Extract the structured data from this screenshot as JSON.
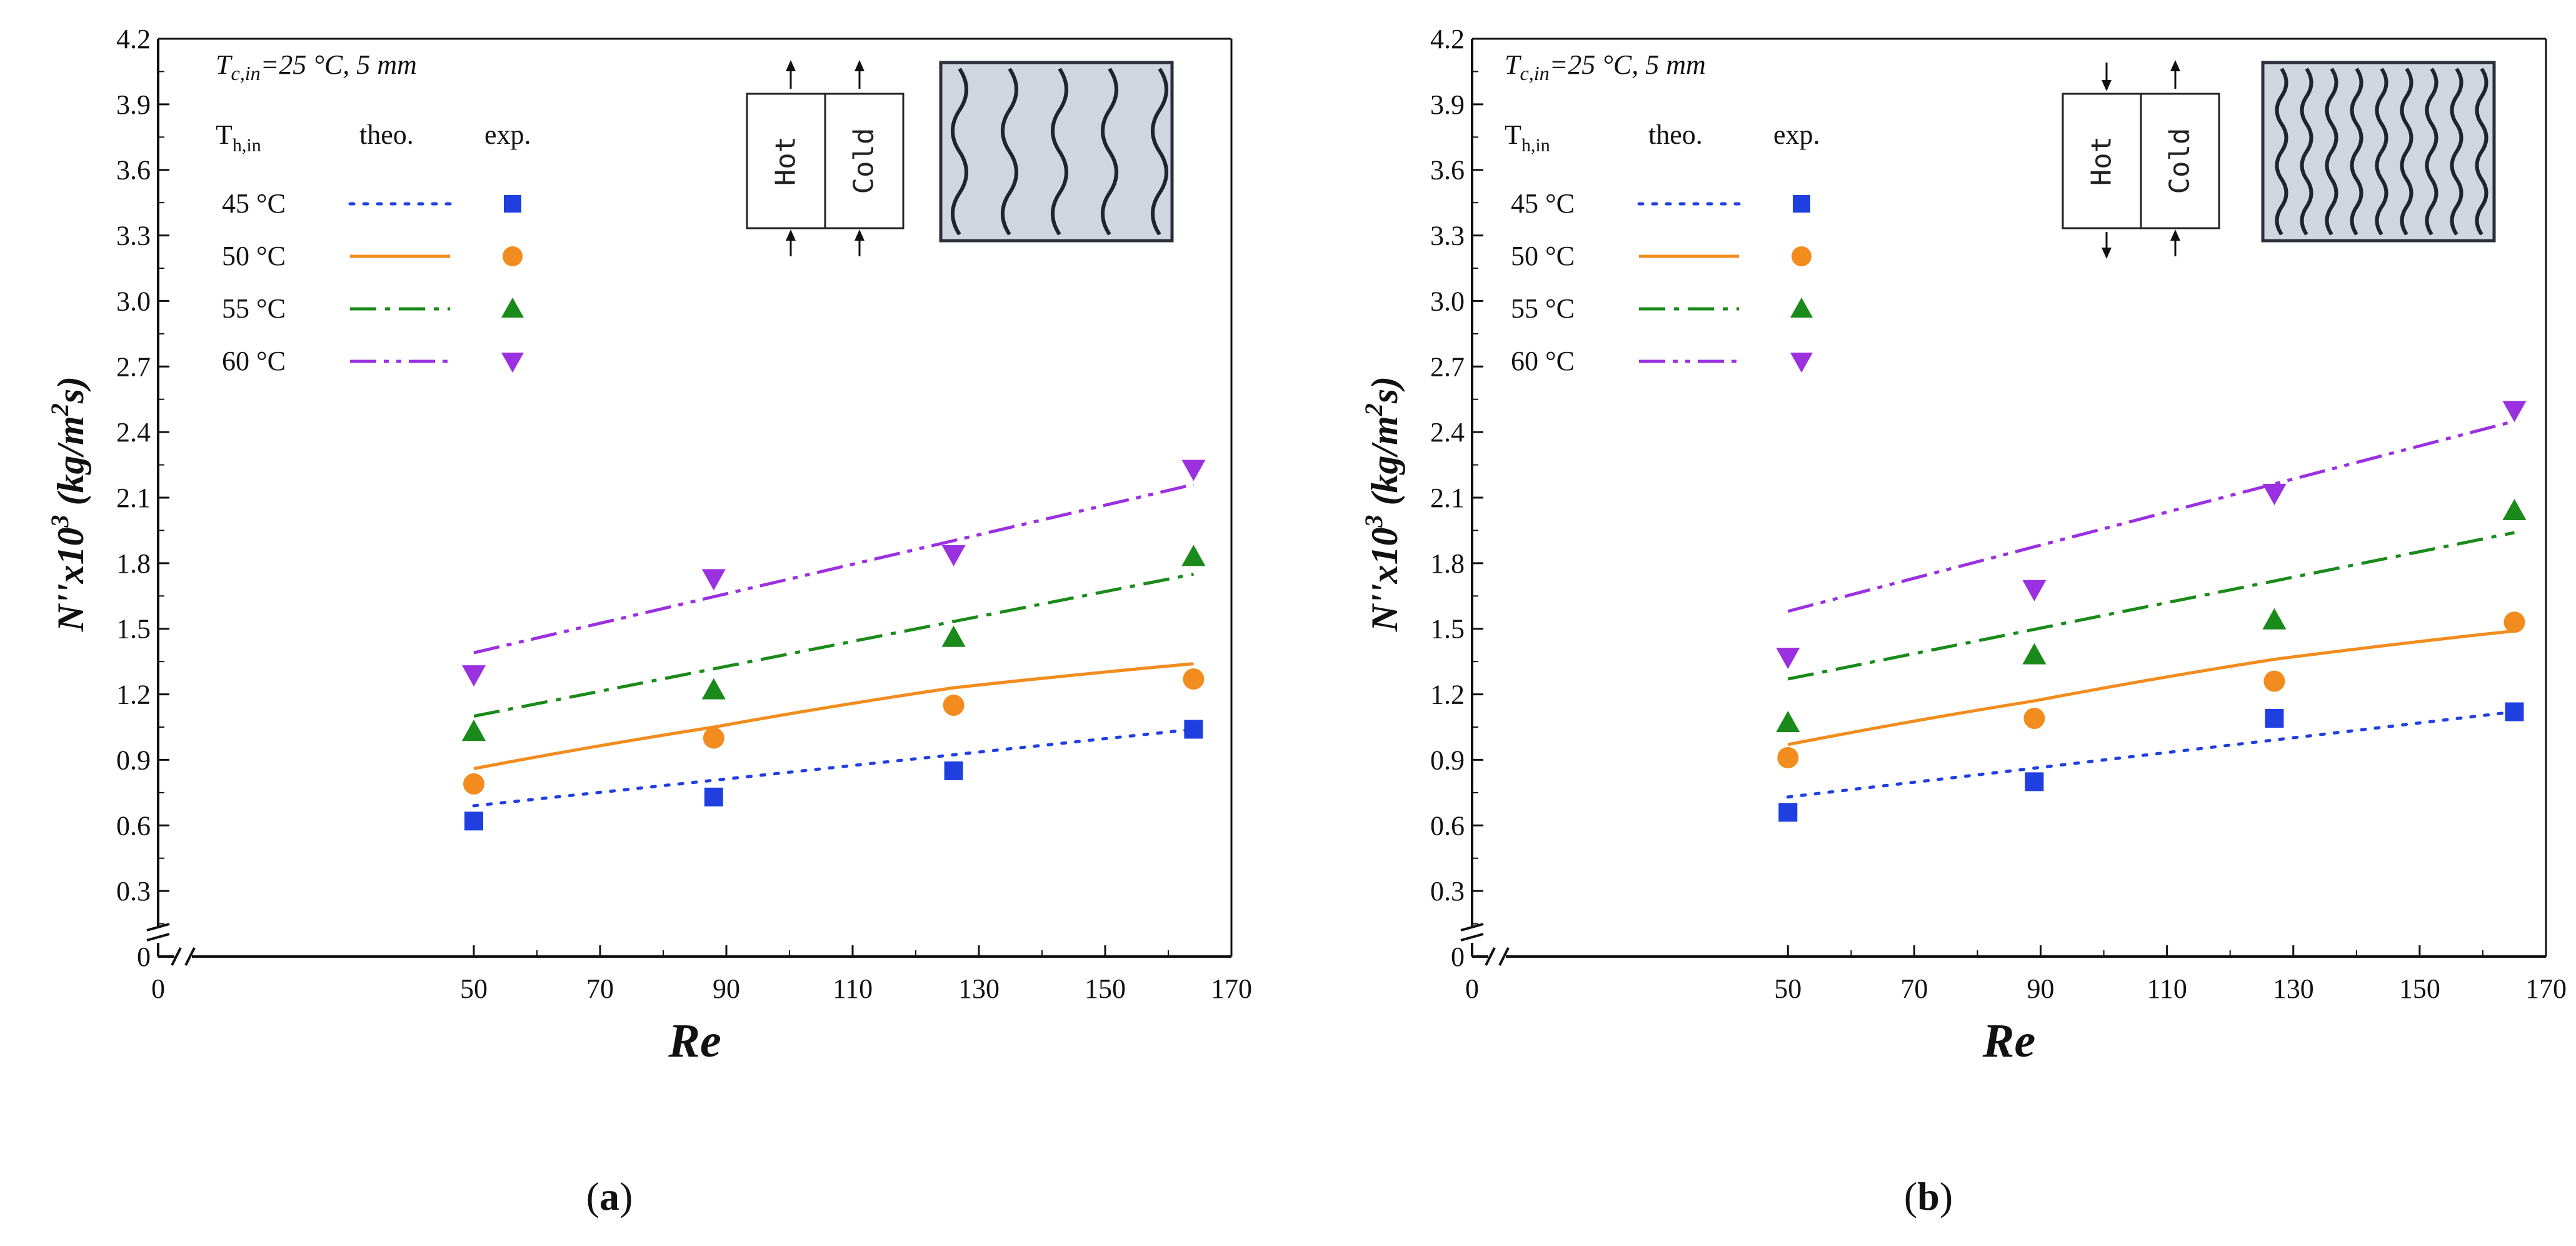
{
  "chart_data": [
    {
      "type": "scatter",
      "panel_label": "a",
      "condition": "T_c,in=25 °C, 5 mm",
      "condition_parts": {
        "T": "T",
        "sub": "c,in",
        "rest": "=25 °C, 5 mm"
      },
      "xlabel": "Re",
      "ylabel": {
        "main": "N''x10",
        "sup1": "3",
        "unit_open": " (kg/m",
        "sup2": "2",
        "unit_close": "s)"
      },
      "xlim": [
        0,
        170
      ],
      "ylim": [
        0,
        4.2
      ],
      "xticks": [
        0,
        50,
        70,
        90,
        110,
        130,
        150,
        170
      ],
      "yticks": [
        0,
        0.3,
        0.6,
        0.9,
        1.2,
        1.5,
        1.8,
        2.1,
        2.4,
        2.7,
        3.0,
        3.3,
        3.6,
        3.9,
        4.2
      ],
      "legend_headers": {
        "T": "T",
        "sub": "h,in",
        "theo": "theo.",
        "exp": "exp."
      },
      "flow": {
        "hot_label": "Hot",
        "cold_label": "Cold",
        "hot_direction": "up",
        "cold_direction": "up",
        "arrangement": "co-current"
      },
      "series": [
        {
          "name": "45 °C",
          "color": "#1f3fe0",
          "line": "dotted",
          "marker": "square",
          "theo": [
            [
              50,
              0.69
            ],
            [
              164,
              1.04
            ]
          ],
          "exp_x": [
            50,
            88,
            126,
            164
          ],
          "exp_y": [
            0.62,
            0.73,
            0.85,
            1.04
          ]
        },
        {
          "name": "50 °C",
          "color": "#f28c1e",
          "line": "solid",
          "marker": "circle",
          "theo": [
            [
              50,
              0.86
            ],
            [
              88,
              1.05
            ],
            [
              126,
              1.23
            ],
            [
              164,
              1.34
            ]
          ],
          "exp_x": [
            50,
            88,
            126,
            164
          ],
          "exp_y": [
            0.79,
            1.0,
            1.15,
            1.27
          ]
        },
        {
          "name": "55 °C",
          "color": "#1a8a1a",
          "line": "dashdot",
          "marker": "triangle-up",
          "theo": [
            [
              50,
              1.1
            ],
            [
              164,
              1.75
            ]
          ],
          "exp_x": [
            50,
            88,
            126,
            164
          ],
          "exp_y": [
            1.03,
            1.22,
            1.46,
            1.83
          ]
        },
        {
          "name": "60 °C",
          "color": "#9b30e0",
          "line": "dashdotdot",
          "marker": "triangle-down",
          "theo": [
            [
              50,
              1.39
            ],
            [
              164,
              2.16
            ]
          ],
          "exp_x": [
            50,
            88,
            126,
            164
          ],
          "exp_y": [
            1.29,
            1.73,
            1.84,
            2.23
          ]
        }
      ]
    },
    {
      "type": "scatter",
      "panel_label": "b",
      "condition": "T_c,in=25 °C, 5 mm",
      "condition_parts": {
        "T": "T",
        "sub": "c,in",
        "rest": "=25 °C, 5 mm"
      },
      "xlabel": "Re",
      "ylabel": {
        "main": "N''x10",
        "sup1": "3",
        "unit_open": " (kg/m",
        "sup2": "2",
        "unit_close": "s)"
      },
      "xlim": [
        0,
        170
      ],
      "ylim": [
        0,
        4.2
      ],
      "xticks": [
        0,
        50,
        70,
        90,
        110,
        130,
        150,
        170
      ],
      "yticks": [
        0,
        0.3,
        0.6,
        0.9,
        1.2,
        1.5,
        1.8,
        2.1,
        2.4,
        2.7,
        3.0,
        3.3,
        3.6,
        3.9,
        4.2
      ],
      "legend_headers": {
        "T": "T",
        "sub": "h,in",
        "theo": "theo.",
        "exp": "exp."
      },
      "flow": {
        "hot_label": "Hot",
        "cold_label": "Cold",
        "hot_direction": "down",
        "cold_direction": "up",
        "arrangement": "counter-current"
      },
      "series": [
        {
          "name": "45 °C",
          "color": "#1f3fe0",
          "line": "dotted",
          "marker": "square",
          "theo": [
            [
              50,
              0.73
            ],
            [
              165,
              1.12
            ]
          ],
          "exp_x": [
            50,
            89,
            127,
            165
          ],
          "exp_y": [
            0.66,
            0.8,
            1.09,
            1.12
          ]
        },
        {
          "name": "50 °C",
          "color": "#f28c1e",
          "line": "solid",
          "marker": "circle",
          "theo": [
            [
              50,
              0.97
            ],
            [
              89,
              1.17
            ],
            [
              127,
              1.36
            ],
            [
              165,
              1.49
            ]
          ],
          "exp_x": [
            50,
            89,
            127,
            165
          ],
          "exp_y": [
            0.91,
            1.09,
            1.26,
            1.53
          ]
        },
        {
          "name": "55 °C",
          "color": "#1a8a1a",
          "line": "dashdot",
          "marker": "triangle-up",
          "theo": [
            [
              50,
              1.27
            ],
            [
              165,
              1.94
            ]
          ],
          "exp_x": [
            50,
            89,
            127,
            165
          ],
          "exp_y": [
            1.07,
            1.38,
            1.54,
            2.04
          ]
        },
        {
          "name": "60 °C",
          "color": "#9b30e0",
          "line": "dashdotdot",
          "marker": "triangle-down",
          "theo": [
            [
              50,
              1.58
            ],
            [
              165,
              2.45
            ]
          ],
          "exp_x": [
            50,
            89,
            127,
            165
          ],
          "exp_y": [
            1.37,
            1.68,
            2.12,
            2.5
          ]
        }
      ]
    }
  ]
}
